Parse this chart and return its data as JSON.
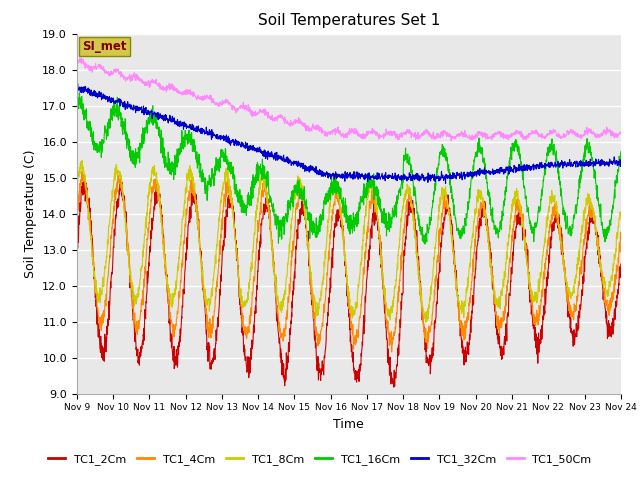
{
  "title": "Soil Temperatures Set 1",
  "xlabel": "Time",
  "ylabel": "Soil Temperature (C)",
  "ylim": [
    9.0,
    19.0
  ],
  "yticks": [
    9.0,
    10.0,
    11.0,
    12.0,
    13.0,
    14.0,
    15.0,
    16.0,
    17.0,
    18.0,
    19.0
  ],
  "xtick_labels": [
    "Nov 9",
    "Nov 10",
    "Nov 11",
    "Nov 12",
    "Nov 13",
    "Nov 14",
    "Nov 15",
    "Nov 16",
    "Nov 17",
    "Nov 18",
    "Nov 19",
    "Nov 20",
    "Nov 21",
    "Nov 22",
    "Nov 23",
    "Nov 24"
  ],
  "annotation_text": "SI_met",
  "annotation_bg": "#d4c84a",
  "annotation_text_color": "#800000",
  "annotation_border": "#888800",
  "fig_bg_color": "#ffffff",
  "plot_bg_color": "#e8e8e8",
  "grid_color": "#ffffff",
  "series": [
    {
      "label": "TC1_2Cm",
      "color": "#cc0000",
      "lw": 0.8
    },
    {
      "label": "TC1_4Cm",
      "color": "#ff8800",
      "lw": 0.8
    },
    {
      "label": "TC1_8Cm",
      "color": "#cccc00",
      "lw": 0.8
    },
    {
      "label": "TC1_16Cm",
      "color": "#00cc00",
      "lw": 0.8
    },
    {
      "label": "TC1_32Cm",
      "color": "#0000cc",
      "lw": 0.8
    },
    {
      "label": "TC1_50Cm",
      "color": "#ff88ff",
      "lw": 0.8
    }
  ]
}
